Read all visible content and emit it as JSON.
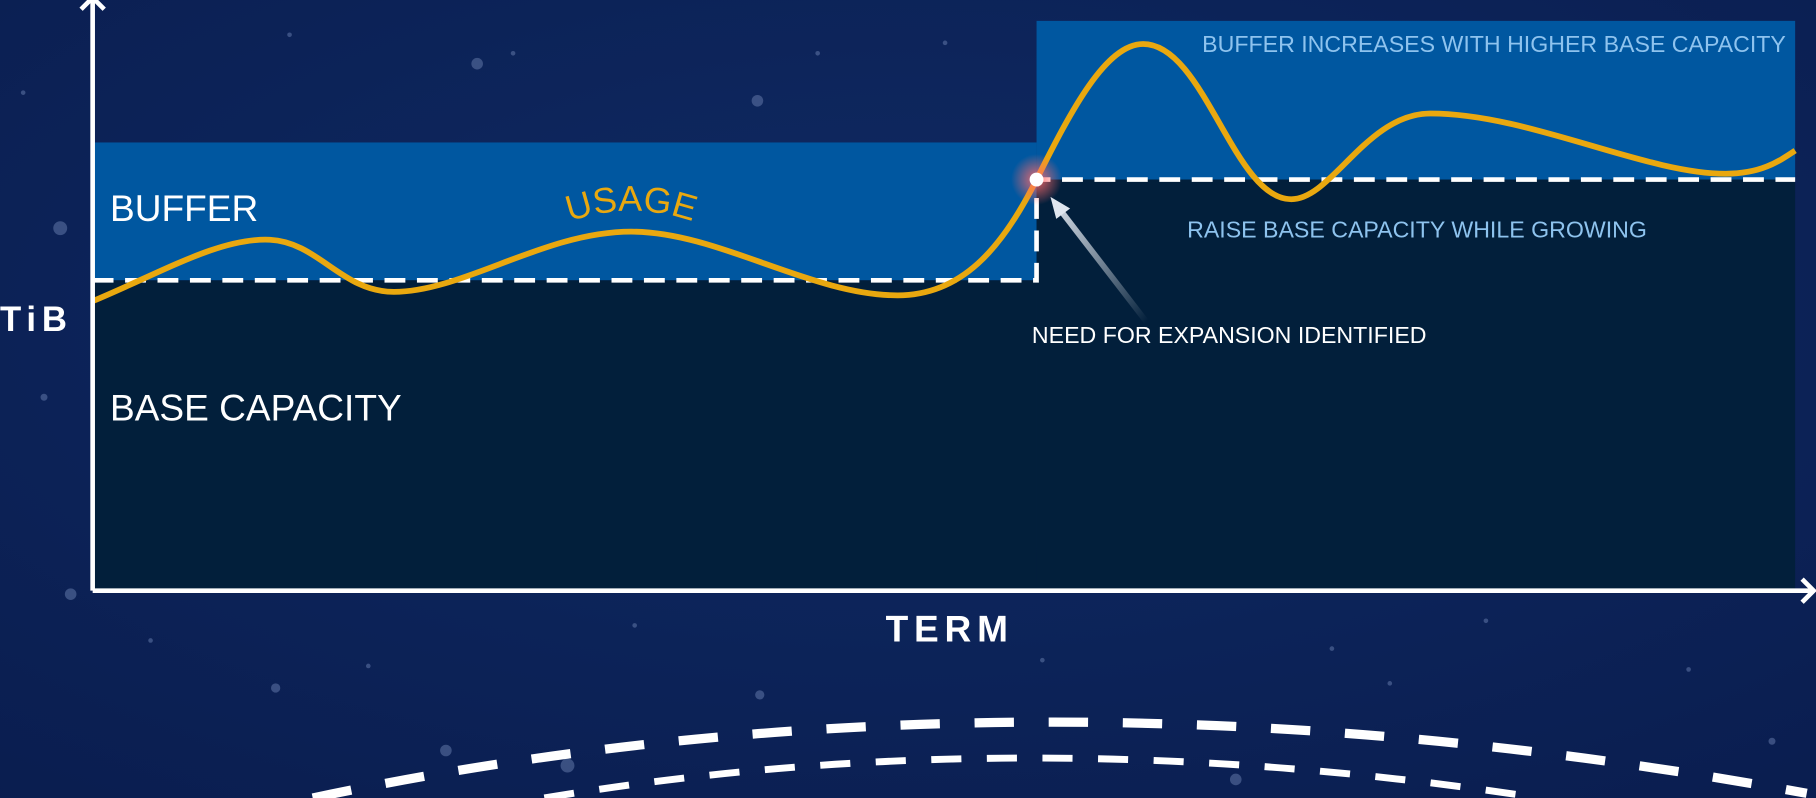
{
  "axes": {
    "y_label": "TiB",
    "x_label": "TERM"
  },
  "regions": {
    "buffer": "BUFFER",
    "base_capacity": "BASE CAPACITY"
  },
  "curve_label": "USAGE",
  "annotations": {
    "buffer_increase": "BUFFER INCREASES WITH HIGHER BASE CAPACITY",
    "raise_capacity": "RAISE BASE CAPACITY WHILE GROWING",
    "expansion": "NEED FOR EXPANSION IDENTIFIED"
  }
}
